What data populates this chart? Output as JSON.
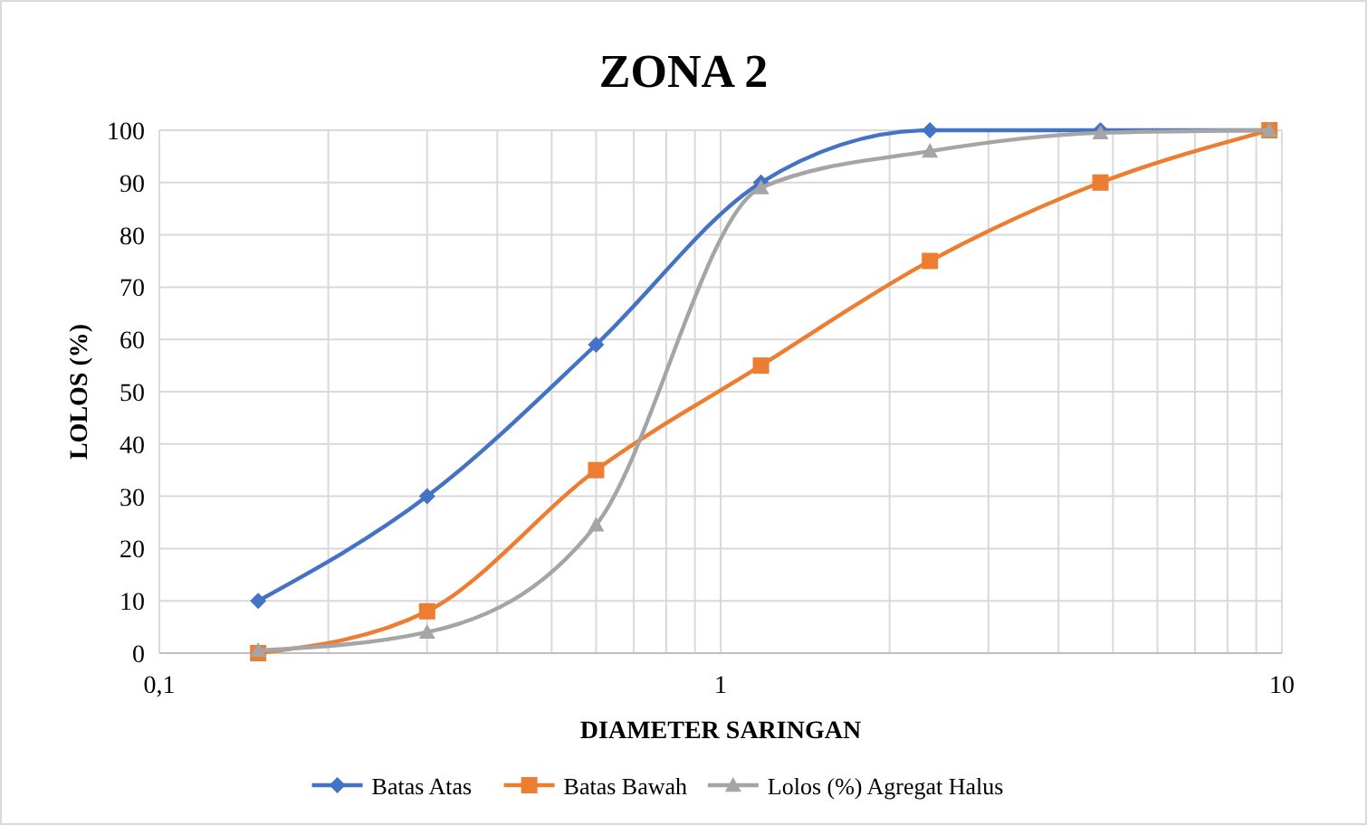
{
  "chart_data": {
    "type": "line",
    "title": "ZONA 2",
    "xlabel": "DIAMETER SARINGAN",
    "ylabel": "LOLOS (%)",
    "log": "x",
    "xlim": [
      0.1,
      10
    ],
    "xticks": [
      {
        "value": 0.1,
        "label": "0,1"
      },
      {
        "value": 0.2,
        "label": null
      },
      {
        "value": 0.3,
        "label": null
      },
      {
        "value": 0.4,
        "label": null
      },
      {
        "value": 0.5,
        "label": null
      },
      {
        "value": 0.6,
        "label": null
      },
      {
        "value": 0.7,
        "label": null
      },
      {
        "value": 0.8,
        "label": null
      },
      {
        "value": 0.9,
        "label": null
      },
      1,
      {
        "value": 2,
        "label": null
      },
      {
        "value": 3,
        "label": null
      },
      {
        "value": 4,
        "label": null
      },
      {
        "value": 5,
        "label": null
      },
      {
        "value": 6,
        "label": null
      },
      {
        "value": 7,
        "label": null
      },
      {
        "value": 8,
        "label": null
      },
      {
        "value": 9,
        "label": null
      },
      10
    ],
    "ylim": [
      0,
      100
    ],
    "yticks": [
      0,
      10,
      20,
      30,
      40,
      50,
      60,
      70,
      80,
      90,
      100
    ],
    "grid": true,
    "legend": "bottom",
    "x": [
      0.15,
      0.3,
      0.6,
      1.18,
      2.36,
      4.75,
      9.5
    ],
    "series": [
      {
        "name": "Batas Atas",
        "color": "#4472c4",
        "marker": "diamond",
        "values": [
          10,
          30,
          59,
          90,
          100,
          100,
          100
        ]
      },
      {
        "name": "Batas Bawah",
        "color": "#ed7d31",
        "marker": "square",
        "values": [
          0,
          8,
          35,
          55,
          75,
          90,
          100
        ]
      },
      {
        "name": "Lolos (%) Agregat Halus",
        "color": "#a5a5a5",
        "marker": "triangle",
        "values": [
          0.5,
          4,
          24.5,
          89,
          96,
          99.5,
          100
        ]
      }
    ]
  }
}
